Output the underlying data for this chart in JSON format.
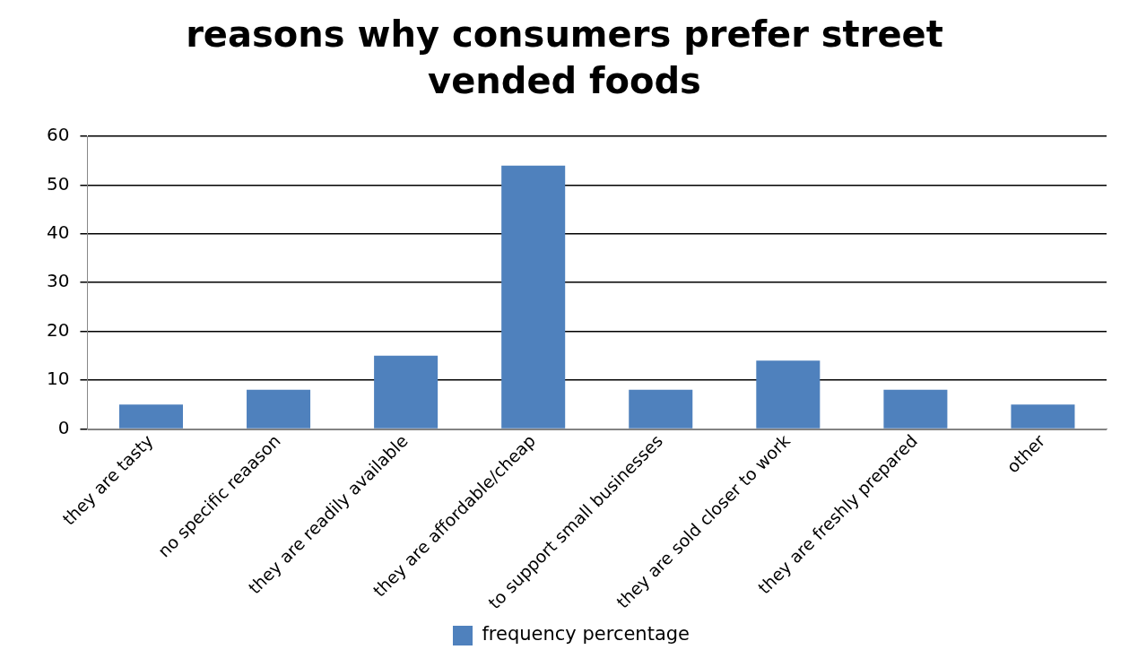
{
  "chart_data": {
    "type": "bar",
    "title": "reasons why consumers prefer street vended foods",
    "categories": [
      "they are tasty",
      "no specific reaason",
      "they are readily available",
      "they are affordable/cheap",
      "to support small businesses",
      "they are sold closer to work",
      "they are freshly prepared",
      "other"
    ],
    "series": [
      {
        "name": "frequency percentage",
        "color": "#4f81bd",
        "values": [
          5,
          8,
          15,
          54,
          8,
          14,
          8,
          5
        ]
      }
    ],
    "ylim": [
      0,
      60
    ],
    "yticks": [
      0,
      10,
      20,
      30,
      40,
      50,
      60
    ],
    "grid": "y",
    "legend": "bottom"
  }
}
